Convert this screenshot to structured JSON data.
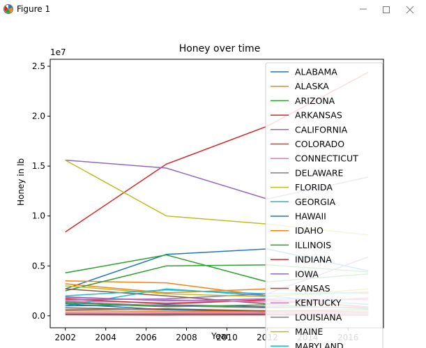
{
  "window": {
    "title": "Figure 1",
    "icon": "matplotlib-figure-icon",
    "controls": [
      "minimize-icon",
      "maximize-icon",
      "close-icon"
    ]
  },
  "colors": {
    "tab10": [
      "#1f77b4",
      "#ff7f0e",
      "#2ca02c",
      "#d62728",
      "#9467bd",
      "#8c564b",
      "#e377c2",
      "#7f7f7f",
      "#bcbd22",
      "#17becf"
    ]
  },
  "chart_data": {
    "type": "line",
    "title": "Honey over time",
    "xlabel": "Year",
    "ylabel": "Honey in lb",
    "y_offset_text": "1e7",
    "xlim": [
      2001.25,
      2017.75
    ],
    "ylim": [
      -1200000,
      25700000
    ],
    "xticks": [
      "2002",
      "2004",
      "2006",
      "2008",
      "2010",
      "2012",
      "2014",
      "2016"
    ],
    "yticks": [
      "0.0",
      "0.5",
      "1.0",
      "1.5",
      "2.0",
      "2.5"
    ],
    "x": [
      2002,
      2007,
      2012,
      2017
    ],
    "legend_position": "upper right",
    "series": [
      {
        "name": "ALABAMA",
        "values": [
          2700000,
          6150000,
          6700000,
          4500000
        ]
      },
      {
        "name": "ALASKA",
        "values": [
          3500000,
          3300000,
          2000000,
          2400000
        ]
      },
      {
        "name": "ARIZONA",
        "values": [
          4300000,
          6100000,
          3400000,
          4200000
        ]
      },
      {
        "name": "ARKANSAS",
        "values": [
          8400000,
          15200000,
          19000000,
          24400000
        ]
      },
      {
        "name": "CALIFORNIA",
        "values": [
          15600000,
          14800000,
          11700000,
          13900000
        ]
      },
      {
        "name": "COLORADO",
        "values": [
          800000,
          600000,
          500000,
          400000
        ]
      },
      {
        "name": "CONNECTICUT",
        "values": [
          1500000,
          1300000,
          1600000,
          1200000
        ]
      },
      {
        "name": "DELAWARE",
        "values": [
          200000,
          150000,
          100000,
          120000
        ]
      },
      {
        "name": "FLORIDA",
        "values": [
          15600000,
          10000000,
          9200000,
          8100000
        ]
      },
      {
        "name": "GEORGIA",
        "values": [
          1000000,
          2700000,
          2000000,
          1100000
        ]
      },
      {
        "name": "HAWAII",
        "values": [
          1200000,
          600000,
          400000,
          300000
        ]
      },
      {
        "name": "IDAHO",
        "values": [
          3200000,
          2300000,
          2700000,
          2200000
        ]
      },
      {
        "name": "ILLINOIS",
        "values": [
          2500000,
          5000000,
          5100000,
          4400000
        ]
      },
      {
        "name": "INDIANA",
        "values": [
          1700000,
          1200000,
          1600000,
          900000
        ]
      },
      {
        "name": "IOWA",
        "values": [
          1600000,
          1700000,
          2200000,
          5900000
        ]
      },
      {
        "name": "KANSAS",
        "values": [
          2700000,
          2000000,
          1200000,
          1800000
        ]
      },
      {
        "name": "KENTUCKY",
        "values": [
          1800000,
          1600000,
          1400000,
          1700000
        ]
      },
      {
        "name": "LOUISIANA",
        "values": [
          300000,
          250000,
          200000,
          250000
        ]
      },
      {
        "name": "MAINE",
        "values": [
          3000000,
          2200000,
          1900000,
          2700000
        ]
      },
      {
        "name": "MARYLAND",
        "values": [
          2000000,
          2600000,
          2200000,
          2300000
        ]
      },
      {
        "name": "",
        "values": [
          1000000,
          1100000,
          900000,
          800000
        ]
      },
      {
        "name": "",
        "values": [
          500000,
          450000,
          400000,
          380000
        ]
      },
      {
        "name": "",
        "values": [
          1300000,
          900000,
          1100000,
          700000
        ]
      },
      {
        "name": "",
        "values": [
          100000,
          80000,
          90000,
          70000
        ]
      },
      {
        "name": "",
        "values": [
          1900000,
          1500000,
          1700000,
          1600000
        ]
      },
      {
        "name": "",
        "values": [
          600000,
          700000,
          500000,
          600000
        ]
      },
      {
        "name": "",
        "values": [
          250000,
          300000,
          280000,
          260000
        ]
      },
      {
        "name": "",
        "values": [
          1400000,
          1000000,
          800000,
          900000
        ]
      }
    ]
  }
}
